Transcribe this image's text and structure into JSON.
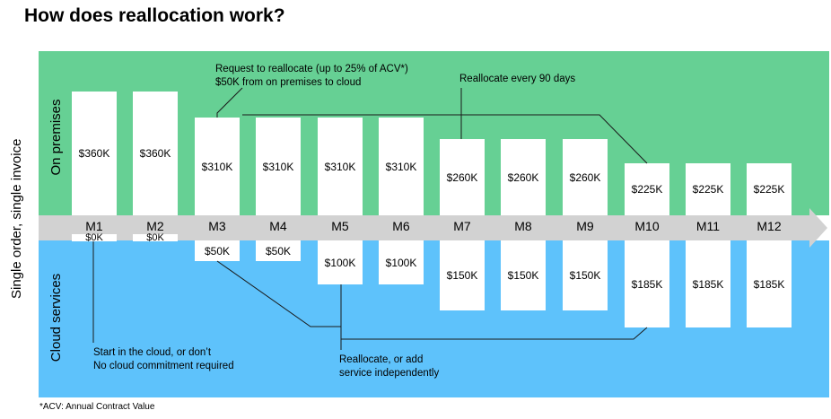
{
  "title": "How does reallocation work?",
  "side_label": "Single order, single invoice",
  "onprem_label": "On premises",
  "cloud_label": "Cloud services",
  "months": [
    "M1",
    "M2",
    "M3",
    "M4",
    "M5",
    "M6",
    "M7",
    "M8",
    "M9",
    "M10",
    "M11",
    "M12"
  ],
  "onprem_values": [
    "$360K",
    "$360K",
    "$310K",
    "$310K",
    "$310K",
    "$310K",
    "$260K",
    "$260K",
    "$260K",
    "$225K",
    "$225K",
    "$225K"
  ],
  "cloud_values": [
    "$0K",
    "$0K",
    "$50K",
    "$50K",
    "$100K",
    "$100K",
    "$150K",
    "$150K",
    "$150K",
    "$185K",
    "$185K",
    "$185K"
  ],
  "annotations": {
    "request_line1": "Request to reallocate (up to 25% of ACV*)",
    "request_line2": "$50K from on premises to cloud",
    "every90": "Reallocate every 90 days",
    "start_line1": "Start in the cloud, or don’t",
    "start_line2": "No cloud commitment required",
    "realloc_line1": "Reallocate, or add",
    "realloc_line2": "service independently"
  },
  "footnote": "*ACV: Annual Contract Value",
  "colors": {
    "onprem_band": "#66d094",
    "cloud_band": "#5ec2fb",
    "month_band": "#d2d2d2"
  }
}
